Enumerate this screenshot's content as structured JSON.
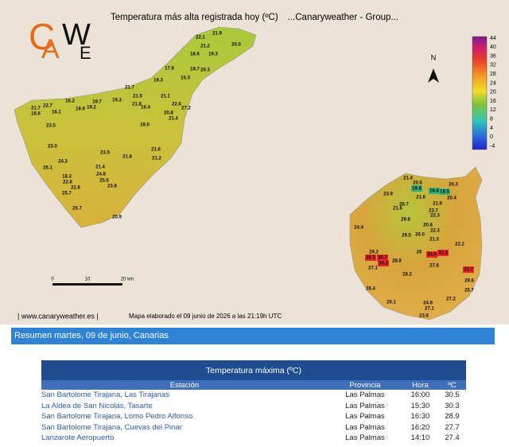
{
  "header": {
    "title": "Temperatura más alta registrada hoy (ºC)",
    "subtitle": "...Canaryweather - Group...",
    "logo": [
      "C",
      "A",
      "W",
      "E"
    ]
  },
  "map": {
    "north": "N",
    "scale": [
      "0",
      "10",
      "20 km"
    ],
    "legend": [
      "44",
      "40",
      "36",
      "32",
      "28",
      "24",
      "20",
      "16",
      "12",
      "8",
      "4",
      "0",
      "-4"
    ],
    "tenerife": [
      "22.1",
      "21.9",
      "21.2",
      "20.0",
      "18.6",
      "19.3",
      "19.7",
      "17.8",
      "20.3",
      "19.3",
      "15.3",
      "21.7",
      "21.5",
      "21.1",
      "19.7",
      "19.3",
      "16.2",
      "22.7",
      "19.9",
      "19.2",
      "21.8",
      "22.6",
      "27.2",
      "16.4",
      "21.7",
      "18.6",
      "16.1",
      "21.4",
      "20.8",
      "19.0",
      "23.5",
      "23.0",
      "21.6",
      "23.5",
      "21.8",
      "21.2",
      "24.3",
      "26.1",
      "21.4",
      "24.8",
      "25.5",
      "23.8",
      "18.3",
      "22.8",
      "22.8",
      "25.7",
      "25.7",
      "25.9"
    ],
    "gran_canaria": [
      "21.4",
      "20.6",
      "21.6",
      "20.3",
      "19.8",
      "19.6",
      "18.5",
      "20.4",
      "23.9",
      "21.6",
      "26.7",
      "21.9",
      "23.7",
      "22.3",
      "29.8",
      "20.8",
      "29.5",
      "26.0",
      "22.3",
      "24.4",
      "21.3",
      "22.2",
      "29.2",
      "30.3",
      "30.7",
      "30.2",
      "26",
      "30.5",
      "32.3",
      "28.8",
      "27.1",
      "27.8",
      "33.7",
      "28.2",
      "29.6",
      "26.4",
      "25.7",
      "27.2",
      "26.1",
      "24.9",
      "27.1",
      "23.6"
    ],
    "site": "| www.canaryweather.es |",
    "note": "Mapa elaborado el 09 junio de 2026 a las 21:19h UTC"
  },
  "summary": {
    "title": "Resumen martes, 09 de junio, Canarias"
  },
  "table": {
    "title": "Temperatura máxima (ºC)",
    "columns": [
      "Estación",
      "Provincia",
      "Hora",
      "ºC"
    ],
    "rows": [
      [
        "San Bartolome Tirajana, Las Tirajanas",
        "Las Palmas",
        "16:00",
        "30.5"
      ],
      [
        "La Aldea de San Nicolás, Tasarte",
        "Las Palmas",
        "15:30",
        "30.3"
      ],
      [
        "San Bartolome Tirajana, Lomo Pedro Alfonso",
        "Las Palmas",
        "16:30",
        "28.9"
      ],
      [
        "San Bartolome Tirajana, Cuevas del Pinar",
        "Las Palmas",
        "16:20",
        "27.7"
      ],
      [
        "Lanzarote Aeropuerto",
        "Las Palmas",
        "14:10",
        "27.4"
      ]
    ]
  }
}
